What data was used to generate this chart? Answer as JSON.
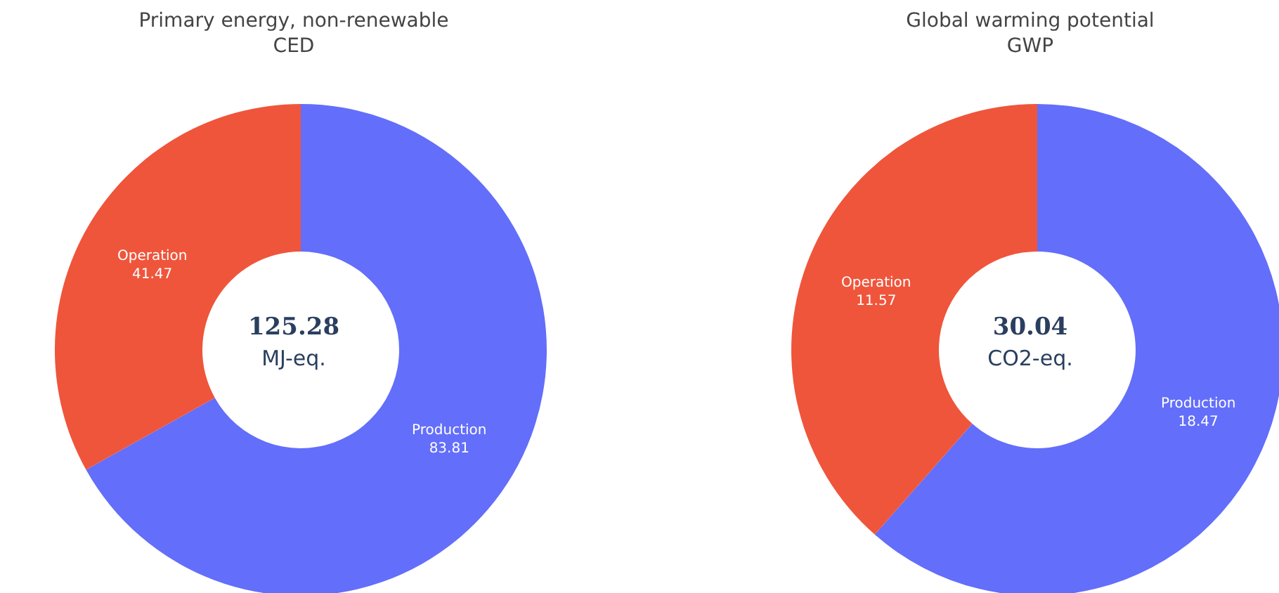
{
  "chart_data": [
    {
      "type": "donut",
      "title": "Primary energy, non-renewable",
      "subtitle": "CED",
      "categories": [
        "Production",
        "Operation"
      ],
      "values": [
        83.81,
        41.47
      ],
      "colors": [
        "#636efa",
        "#ef553b"
      ],
      "data_labels": true,
      "annotations": [
        "125.28",
        "MJ-eq."
      ]
    },
    {
      "type": "donut",
      "title": "Global warming potential",
      "subtitle": "GWP",
      "categories": [
        "Production",
        "Operation"
      ],
      "values": [
        18.47,
        11.57
      ],
      "colors": [
        "#636efa",
        "#ef553b"
      ],
      "data_labels": true,
      "annotations": [
        "30.04",
        "CO2-eq."
      ]
    }
  ]
}
